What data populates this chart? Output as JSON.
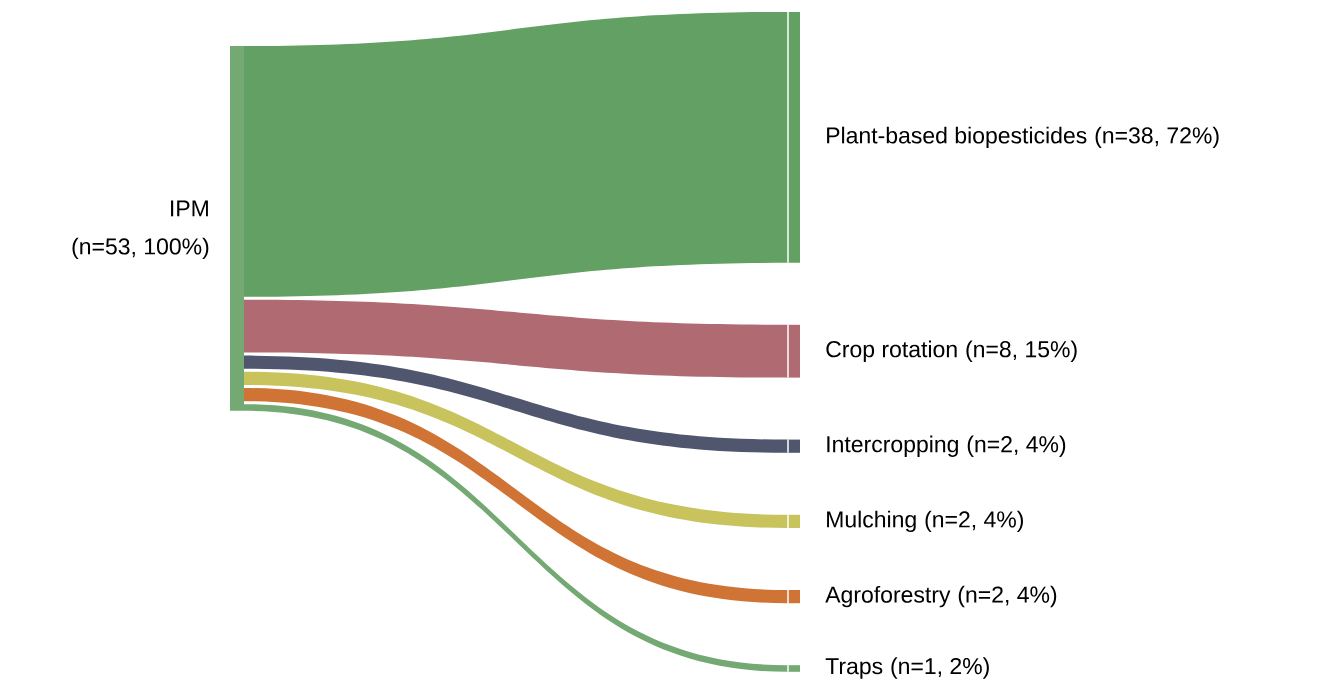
{
  "chart_data": {
    "type": "other",
    "annotations": [
      "IPM",
      "(n=53, 100%)"
    ],
    "color": "#74a974",
    "categories": [
      "Plant-based biopesticides",
      "Crop rotation",
      "Intercropping",
      "Mulching",
      "Agroforestry",
      "Traps"
    ],
    "values": [
      38,
      8,
      2,
      2,
      2,
      1
    ],
    "value_labels": [
      "(n=38, 72%)",
      "(n=8, 15%)",
      "(n=2, 4%)",
      "(n=2, 4%)",
      "(n=2, 4%)",
      "(n=1, 2%)"
    ],
    "colors": [
      "#63a063",
      "#b06a72",
      "#4f566e",
      "#c9c35d",
      "#cf7434",
      "#74a974"
    ]
  }
}
